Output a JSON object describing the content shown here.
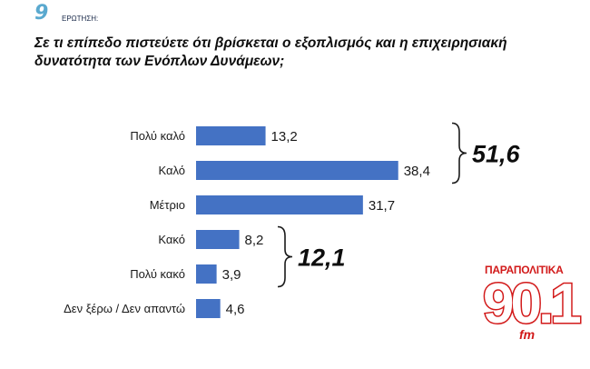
{
  "header": {
    "question_number": "9",
    "question_label": "ΕΡΩΤΗΣΗ:",
    "question_text": "Σε τι επίπεδο πιστεύετε ότι βρίσκεται ο εξοπλισμός και η επιχειρησιακή δυνατότητα των Ενόπλων Δυνάμεων;"
  },
  "chart_data": {
    "type": "bar",
    "orientation": "horizontal",
    "title": "",
    "xlabel": "",
    "ylabel": "",
    "grid": false,
    "legend": false,
    "categories": [
      "Πολύ καλό",
      "Καλό",
      "Μέτριο",
      "Κακό",
      "Πολύ κακό",
      "Δεν ξέρω / Δεν απαντώ"
    ],
    "values": [
      13.2,
      38.4,
      31.7,
      8.2,
      3.9,
      4.6
    ],
    "value_labels": [
      "13,2",
      "38,4",
      "31,7",
      "8,2",
      "3,9",
      "4,6"
    ],
    "xlim": [
      0,
      40
    ],
    "bar_color": "#4472c4",
    "annotations": [
      {
        "label": "51,6",
        "groups": [
          "Πολύ καλό",
          "Καλό"
        ]
      },
      {
        "label": "12,1",
        "groups": [
          "Κακό",
          "Πολύ κακό"
        ]
      }
    ]
  },
  "logo": {
    "top_text": "ΠΑΡΑΠΟΛΙΤΙΚΑ",
    "main_text": "90.1",
    "sub_text": "fm",
    "color": "#d21a1a"
  }
}
